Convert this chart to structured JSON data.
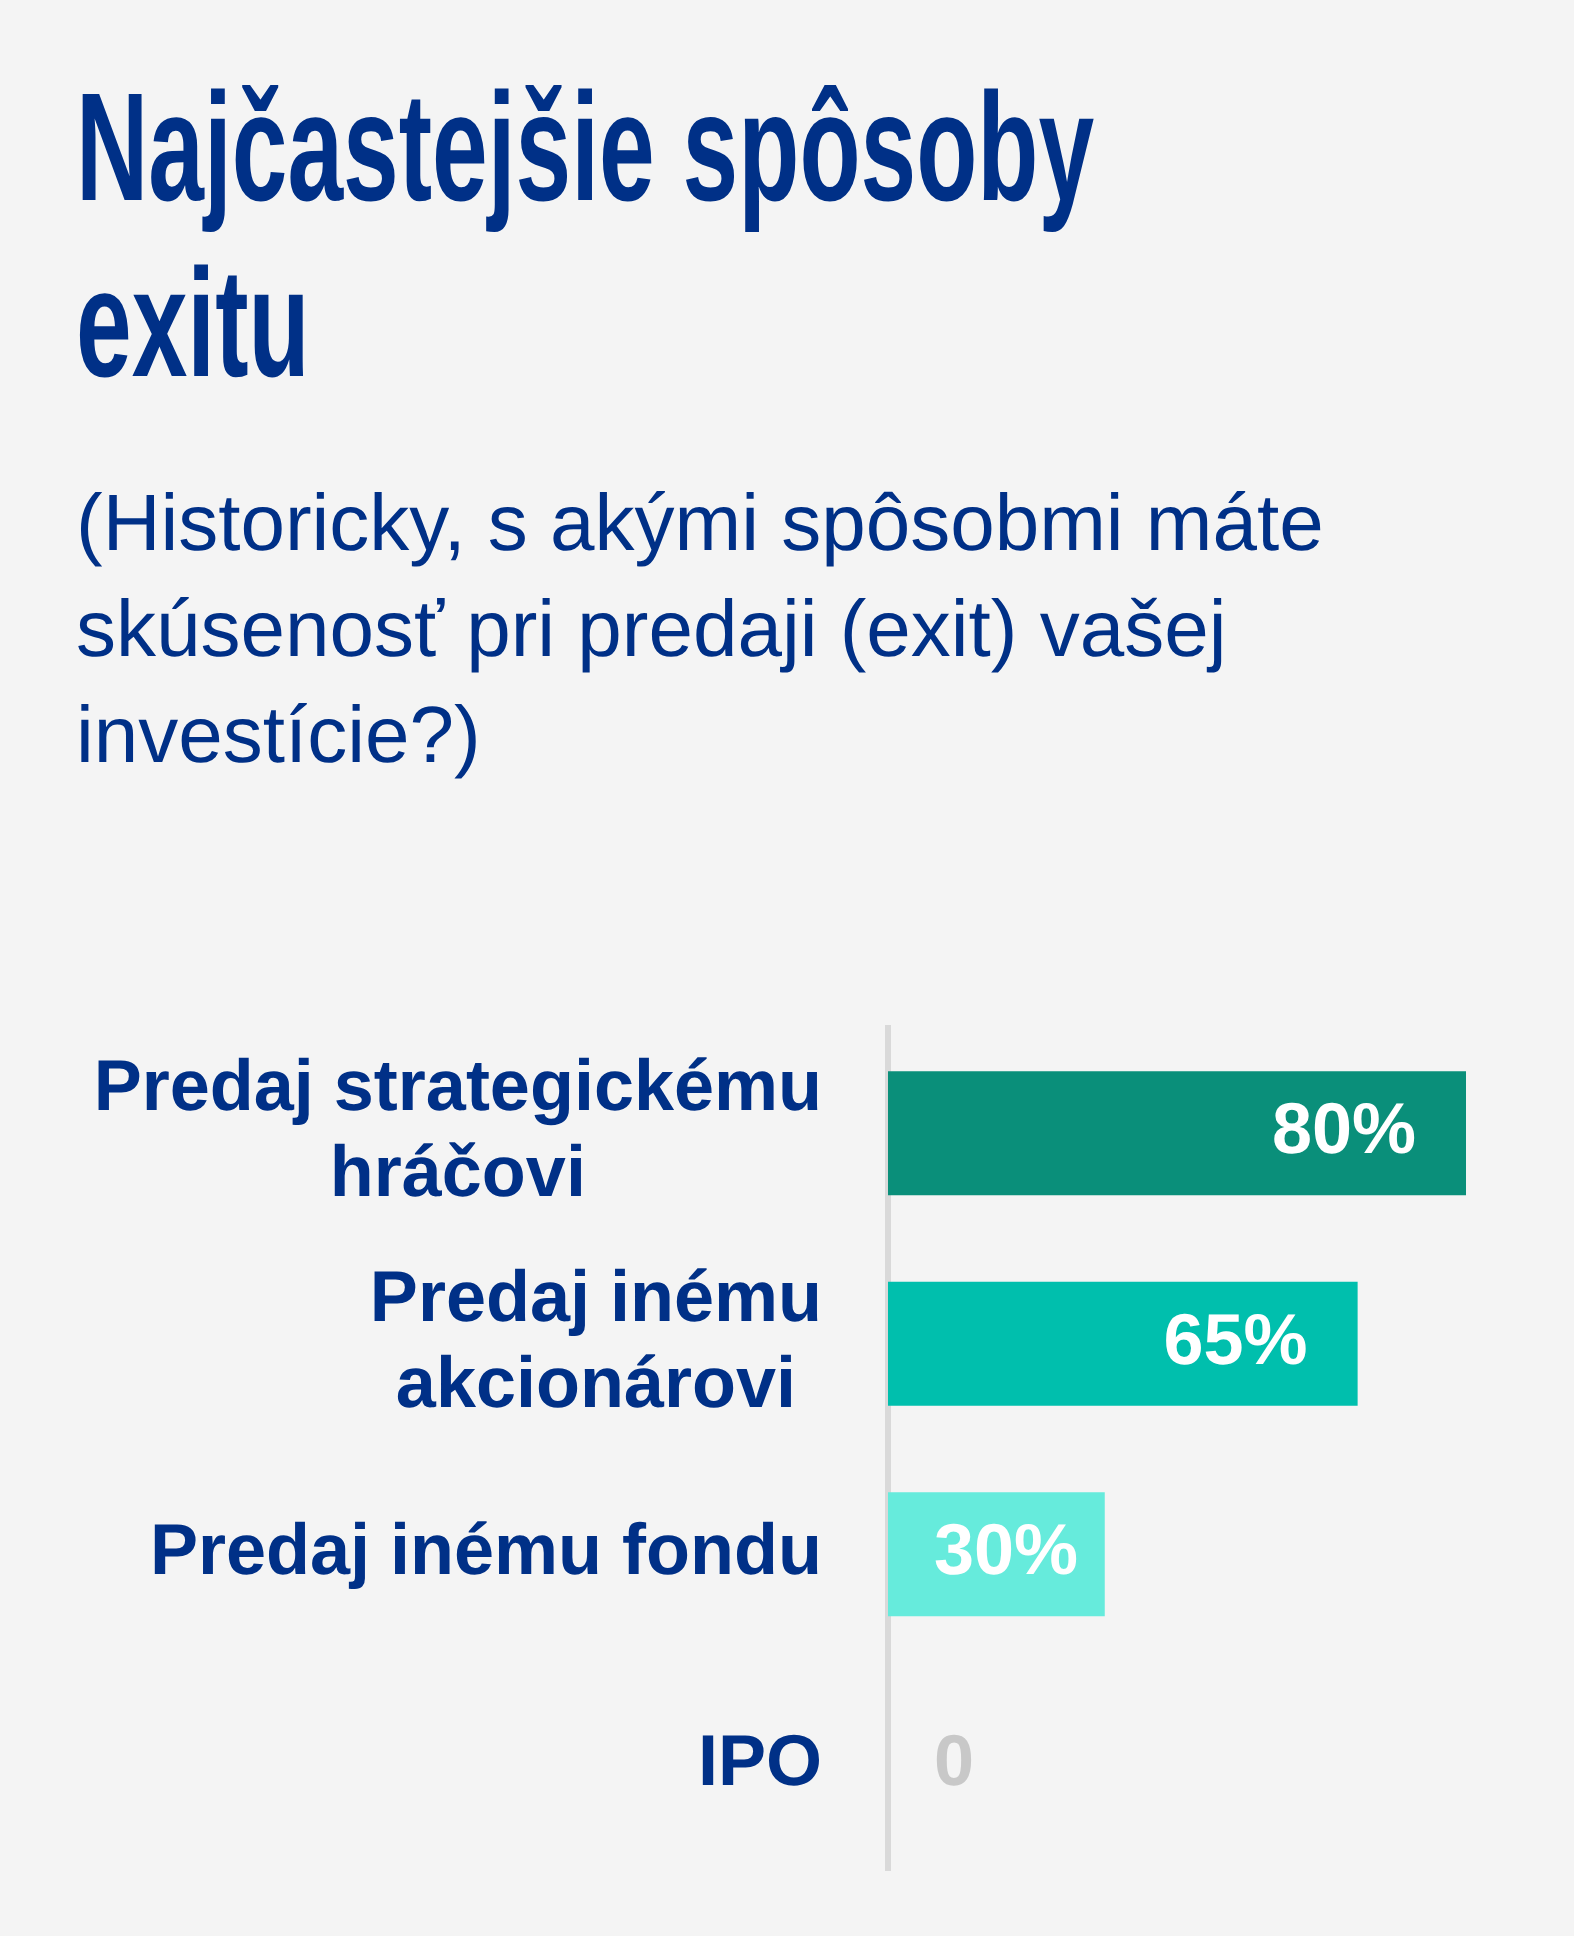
{
  "chart_data": {
    "type": "bar",
    "orientation": "horizontal",
    "title": "Najčastejšie spôsoby exitu",
    "subtitle": "(Historicky, s akými spôsobmi máte skúsenosť pri predaji (exit) vašej investície?)",
    "categories": [
      "Predaj strategickému hráčovi",
      "Predaj inému akcionárovi",
      "Predaj inému fondu",
      "IPO"
    ],
    "values": [
      80,
      65,
      30,
      0
    ],
    "colors": [
      "#0a8f7a",
      "#00bfad",
      "#66ebdc",
      null
    ],
    "value_labels": [
      "80%",
      "65%",
      "30%",
      "0"
    ],
    "tick_labels": "y"
  }
}
